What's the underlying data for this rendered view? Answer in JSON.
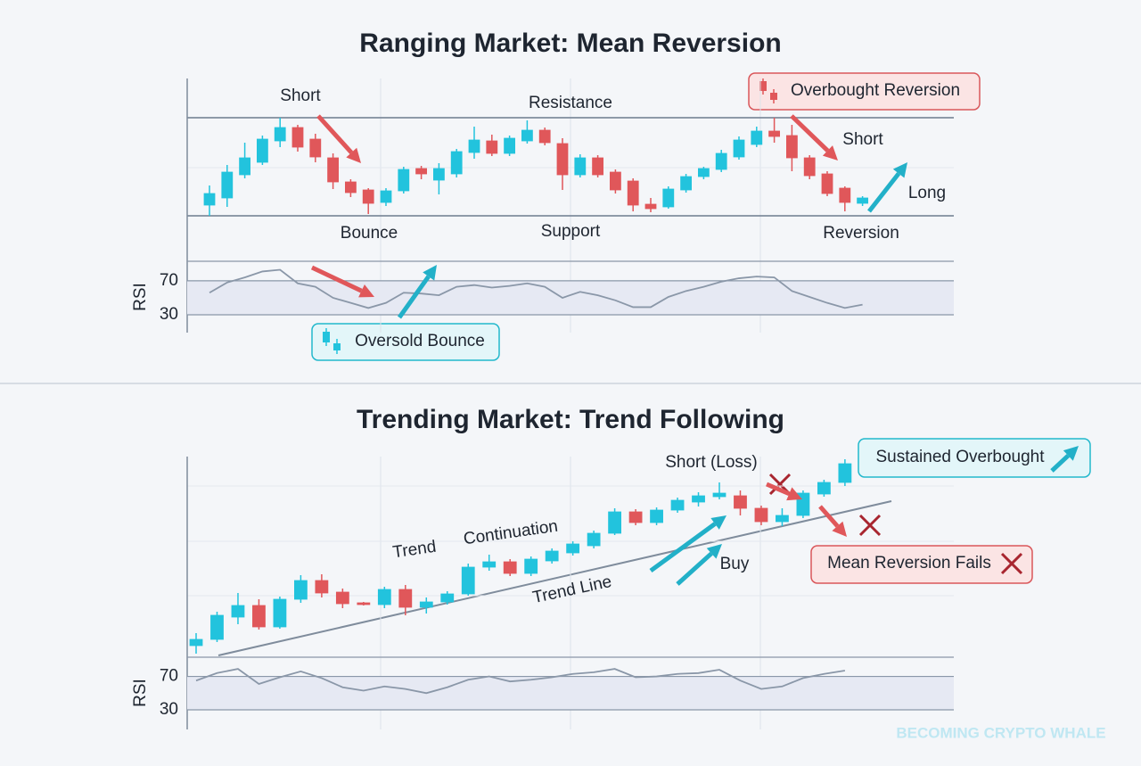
{
  "chart_data": [
    {
      "type": "candlestick",
      "title": "Ranging Market: Mean Reversion",
      "open": [
        21,
        29,
        55,
        69,
        93,
        108,
        95,
        74,
        47,
        38,
        24,
        37,
        62,
        49,
        56,
        80,
        93,
        79,
        93,
        105,
        90,
        55,
        74,
        58,
        48,
        22,
        19,
        38,
        53,
        61,
        75,
        89,
        104,
        99,
        74,
        56,
        40,
        23
      ],
      "high": [
        43,
        66,
        91,
        99,
        119,
        111,
        101,
        79,
        50,
        40,
        40,
        64,
        65,
        68,
        84,
        109,
        100,
        99,
        116,
        108,
        96,
        78,
        77,
        61,
        51,
        29,
        42,
        56,
        64,
        83,
        98,
        109,
        119,
        111,
        77,
        59,
        42,
        31
      ],
      "low": [
        9,
        19,
        51,
        66,
        86,
        81,
        69,
        39,
        30,
        11,
        20,
        34,
        50,
        33,
        52,
        73,
        76,
        76,
        90,
        88,
        38,
        52,
        52,
        34,
        14,
        13,
        17,
        35,
        50,
        58,
        72,
        86,
        91,
        59,
        50,
        31,
        14,
        20
      ],
      "close": [
        34,
        58,
        74,
        95,
        108,
        86,
        75,
        47,
        35,
        23,
        37,
        61,
        56,
        62,
        81,
        94,
        79,
        96,
        105,
        91,
        55,
        74,
        55,
        38,
        21,
        17,
        39,
        53,
        62,
        79,
        94,
        104,
        98,
        74,
        54,
        34,
        24,
        29
      ],
      "up_color": "#22c3dd",
      "down_color": "#e0575a",
      "ylim": [
        0,
        165
      ],
      "resistance": {
        "label": "Resistance",
        "value": 119
      },
      "support": {
        "label": "Support",
        "value": 9
      },
      "rsi": {
        "label": "RSI",
        "ylim": [
          30,
          93
        ],
        "yticks": [
          30,
          70
        ],
        "color": "#8a97a8",
        "values": [
          56,
          68,
          74,
          81,
          83,
          67,
          63,
          50,
          44,
          38,
          44,
          56,
          55,
          53,
          63,
          65,
          62,
          64,
          67,
          63,
          50,
          57,
          53,
          47,
          39,
          39,
          51,
          58,
          63,
          69,
          73,
          75,
          74,
          58,
          51,
          44,
          38,
          42
        ]
      },
      "annotations": [
        "Short",
        "Overbought Reversion",
        "Short",
        "Long",
        "Bounce",
        "Reversion",
        "Oversold Bounce"
      ]
    },
    {
      "type": "candlestick",
      "title": "Trending Market: Trend Following",
      "open": [
        11,
        18,
        43,
        56,
        32,
        63,
        84,
        71,
        59,
        57,
        74,
        54,
        60,
        69,
        99,
        105,
        92,
        106,
        115,
        123,
        137,
        161,
        149,
        163,
        172,
        178,
        179,
        165,
        150,
        157,
        181,
        194
      ],
      "high": [
        25,
        49,
        70,
        63,
        66,
        90,
        91,
        75,
        60,
        77,
        79,
        65,
        72,
        103,
        113,
        108,
        111,
        120,
        128,
        140,
        165,
        164,
        166,
        177,
        183,
        194,
        185,
        168,
        165,
        185,
        197,
        220
      ],
      "low": [
        2,
        15,
        35,
        29,
        30,
        59,
        65,
        53,
        56,
        53,
        45,
        47,
        57,
        67,
        95,
        89,
        89,
        103,
        112,
        120,
        135,
        146,
        146,
        160,
        167,
        175,
        157,
        146,
        145,
        154,
        178,
        190
      ],
      "close": [
        18,
        45,
        56,
        32,
        63,
        84,
        70,
        58,
        57,
        74,
        54,
        60,
        69,
        99,
        105,
        92,
        108,
        117,
        125,
        137,
        161,
        149,
        163,
        174,
        179,
        182,
        165,
        150,
        157,
        182,
        194,
        215
      ],
      "up_color": "#22c3dd",
      "down_color": "#e0575a",
      "ylim": [
        0,
        225
      ],
      "rsi": {
        "label": "RSI",
        "ylim": [
          30,
          93
        ],
        "yticks": [
          30,
          70
        ],
        "color": "#8a97a8",
        "values": [
          65,
          74,
          79,
          61,
          69,
          76,
          68,
          57,
          53,
          58,
          55,
          50,
          57,
          66,
          70,
          64,
          66,
          69,
          73,
          75,
          79,
          69,
          70,
          73,
          74,
          78,
          65,
          55,
          58,
          68,
          73,
          77
        ]
      },
      "annotations": [
        "Trend",
        "Continuation",
        "Trend Line",
        "Short (Loss)",
        "Buy",
        "Sustained Overbought",
        "Mean Reversion Fails"
      ]
    }
  ],
  "watermark": "BECOMING CRYPTO WHALE"
}
